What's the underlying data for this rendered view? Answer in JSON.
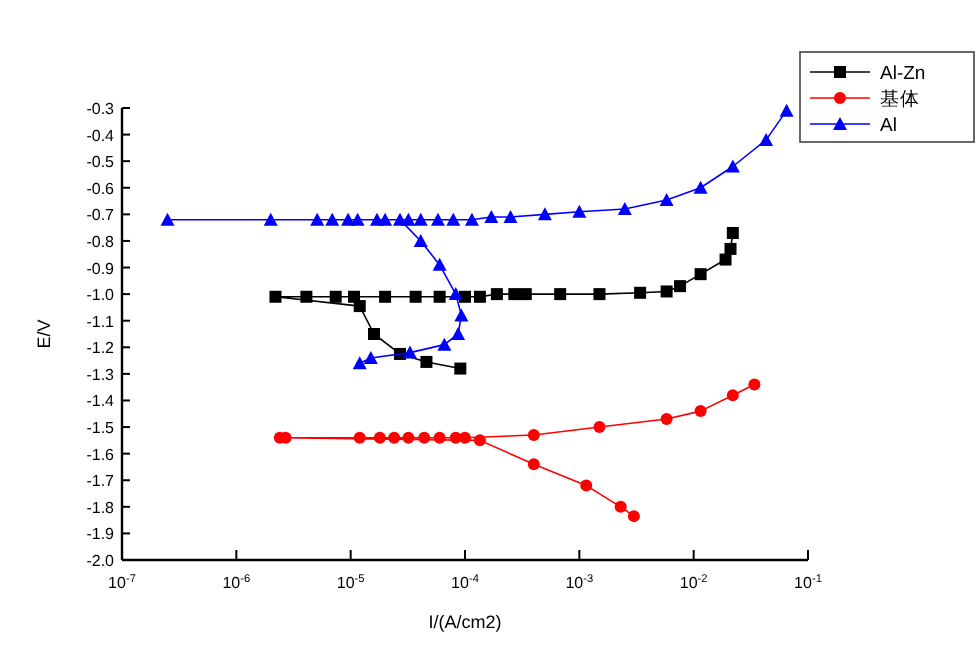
{
  "chart_data": {
    "type": "line",
    "xlabel": "I/(A/cm2)",
    "ylabel": "E/V",
    "log": "x",
    "legend": "top right",
    "grid": false,
    "xlim": [
      1e-07,
      0.1
    ],
    "xticks": [
      {
        "value": 1e-07,
        "label": "10$^{-7}$"
      },
      {
        "value": 1e-06,
        "label": "10$^{-6}$"
      },
      {
        "value": 1e-05,
        "label": "10$^{-5}$"
      },
      {
        "value": 0.0001,
        "label": "10$^{-4}$"
      },
      {
        "value": 0.001,
        "label": "10$^{-3}$"
      },
      {
        "value": 0.01,
        "label": "10$^{-2}$"
      },
      {
        "value": 0.1,
        "label": "10$^{-1}$"
      }
    ],
    "ylim": [
      -2.0,
      -0.3
    ],
    "yticks": [
      {
        "value": -2.0,
        "label": "-2.0"
      },
      {
        "value": -1.9,
        "label": "-1.9"
      },
      {
        "value": -1.8,
        "label": "-1.8"
      },
      {
        "value": -1.7,
        "label": "-1.7"
      },
      {
        "value": -1.6,
        "label": "-1.6"
      },
      {
        "value": -1.5,
        "label": "-1.5"
      },
      {
        "value": -1.4,
        "label": "-1.4"
      },
      {
        "value": -1.3,
        "label": "-1.3"
      },
      {
        "value": -1.2,
        "label": "-1.2"
      },
      {
        "value": -1.1,
        "label": "-1.1"
      },
      {
        "value": -1.0,
        "label": "-1.0"
      },
      {
        "value": -0.9,
        "label": "-0.9"
      },
      {
        "value": -0.8,
        "label": "-0.8"
      },
      {
        "value": -0.7,
        "label": "-0.7"
      },
      {
        "value": -0.6,
        "label": "-0.6"
      },
      {
        "value": -0.5,
        "label": "-0.5"
      },
      {
        "value": -0.4,
        "label": "-0.4"
      },
      {
        "value": -0.3,
        "label": "-0.3"
      }
    ],
    "series": [
      {
        "name": "Al-Zn",
        "color": "#000000",
        "marker": "square",
        "x": [
          9.1e-05,
          4.6e-05,
          2.7e-05,
          1.6e-05,
          1.2e-05,
          2.2e-06,
          4.1e-06,
          7.4e-06,
          1.07e-05,
          2e-05,
          3.7e-05,
          6e-05,
          0.0001,
          0.000135,
          0.00019,
          0.00027,
          0.00034,
          0.00068,
          0.0015,
          0.0034,
          0.0058,
          0.0076,
          0.0115,
          0.019,
          0.021,
          0.022
        ],
        "values": [
          -1.28,
          -1.255,
          -1.225,
          -1.15,
          -1.045,
          -1.01,
          -1.01,
          -1.01,
          -1.01,
          -1.01,
          -1.01,
          -1.01,
          -1.01,
          -1.01,
          -1.0,
          -1.0,
          -1.0,
          -1.0,
          -1.0,
          -0.995,
          -0.99,
          -0.97,
          -0.925,
          -0.87,
          -0.83,
          -0.77
        ]
      },
      {
        "name": "基体",
        "color": "#ff0000",
        "marker": "circle",
        "x": [
          0.003,
          0.0023,
          0.00115,
          0.0004,
          0.000135,
          2.4e-06,
          2.7e-06,
          1.2e-05,
          1.8e-05,
          2.4e-05,
          3.2e-05,
          4.4e-05,
          6e-05,
          8.3e-05,
          0.0001,
          0.0004,
          0.0015,
          0.0058,
          0.0115,
          0.022,
          0.034
        ],
        "values": [
          -1.835,
          -1.8,
          -1.72,
          -1.64,
          -1.55,
          -1.54,
          -1.54,
          -1.54,
          -1.54,
          -1.54,
          -1.54,
          -1.54,
          -1.54,
          -1.54,
          -1.54,
          -1.53,
          -1.5,
          -1.47,
          -1.44,
          -1.38,
          -1.34
        ]
      },
      {
        "name": "Al",
        "color": "#0000ff",
        "marker": "triangle",
        "x": [
          1.2e-05,
          1.5e-05,
          3.3e-05,
          6.6e-05,
          8.7e-05,
          9.3e-05,
          8.3e-05,
          6e-05,
          4.1e-05,
          2.7e-05,
          2.5e-07,
          2e-06,
          5.1e-06,
          6.9e-06,
          9.5e-06,
          1.15e-05,
          1.7e-05,
          2e-05,
          3.2e-05,
          4.1e-05,
          5.8e-05,
          7.9e-05,
          0.000115,
          0.00017,
          0.00025,
          0.0005,
          0.001,
          0.0025,
          0.0058,
          0.0115,
          0.022,
          0.043,
          0.065
        ],
        "values": [
          -1.26,
          -1.24,
          -1.22,
          -1.19,
          -1.15,
          -1.08,
          -1.0,
          -0.89,
          -0.8,
          -0.72,
          -0.72,
          -0.72,
          -0.72,
          -0.72,
          -0.72,
          -0.72,
          -0.72,
          -0.72,
          -0.72,
          -0.72,
          -0.72,
          -0.72,
          -0.72,
          -0.71,
          -0.71,
          -0.7,
          -0.69,
          -0.68,
          -0.646,
          -0.6,
          -0.52,
          -0.42,
          -0.31
        ]
      }
    ]
  }
}
